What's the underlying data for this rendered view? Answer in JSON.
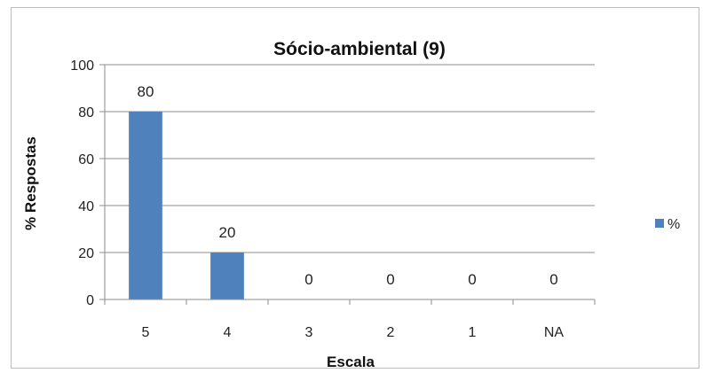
{
  "chart_data": {
    "type": "bar",
    "title": "Sócio-ambiental (9)",
    "xlabel": "Escala",
    "ylabel": "% Respostas",
    "categories": [
      "5",
      "4",
      "3",
      "2",
      "1",
      "NA"
    ],
    "series": [
      {
        "name": "%",
        "values": [
          80,
          20,
          0,
          0,
          0,
          0
        ],
        "color": "#4f81bd"
      }
    ],
    "ylim": [
      0,
      100
    ],
    "yticks": [
      0,
      20,
      40,
      60,
      80,
      100
    ],
    "grid": true,
    "legend": "right",
    "data_labels": true
  }
}
